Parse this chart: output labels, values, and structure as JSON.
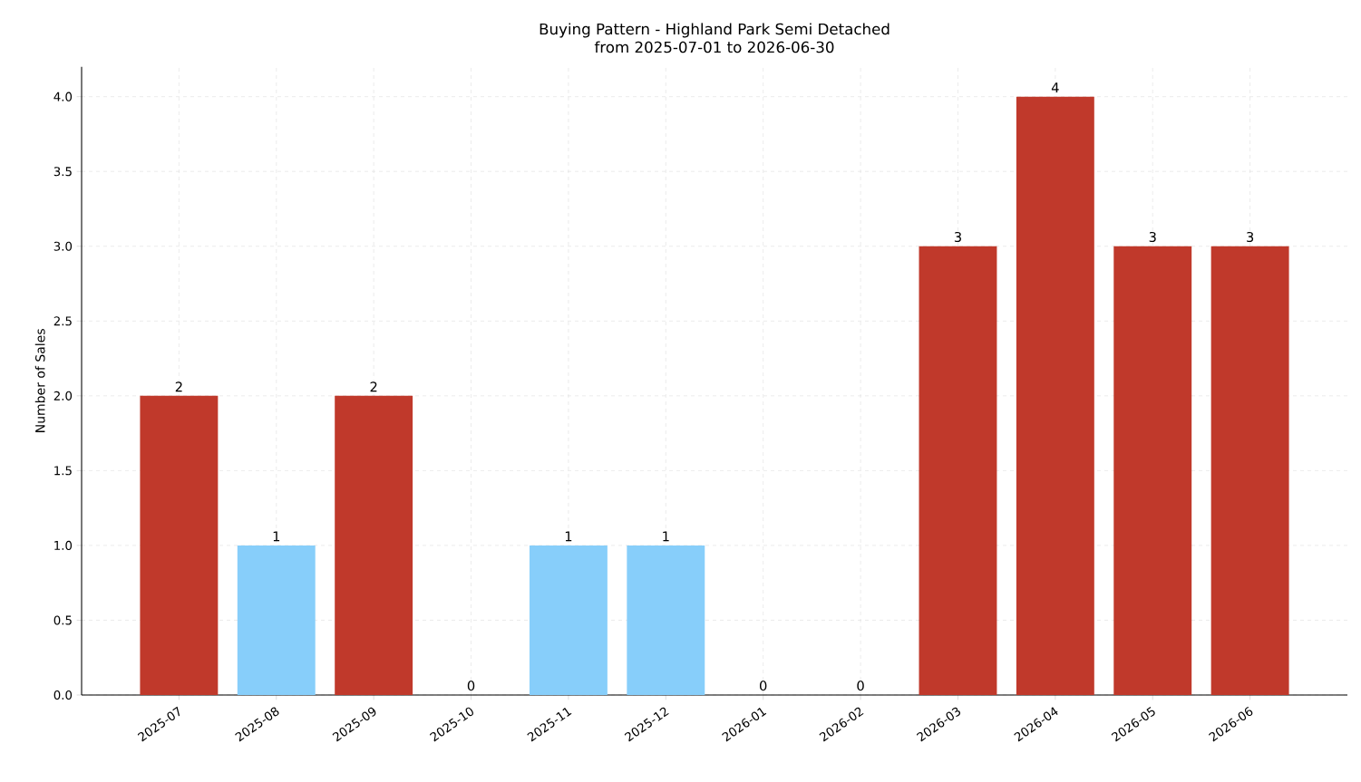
{
  "chart_data": {
    "type": "bar",
    "title": "Buying Pattern - Highland Park Semi Detached\nfrom 2025-07-01 to 2026-06-30",
    "ylabel": "Number of Sales",
    "categories": [
      "2025-07",
      "2025-08",
      "2025-09",
      "2025-10",
      "2025-11",
      "2025-12",
      "2026-01",
      "2026-02",
      "2026-03",
      "2026-04",
      "2026-05",
      "2026-06"
    ],
    "values": [
      2,
      1,
      2,
      0,
      1,
      1,
      0,
      0,
      3,
      4,
      3,
      3
    ],
    "colors": [
      "#c0392b",
      "#87cefa",
      "#c0392b",
      "#87cefa",
      "#87cefa",
      "#87cefa",
      "#87cefa",
      "#87cefa",
      "#c0392b",
      "#c0392b",
      "#c0392b",
      "#c0392b"
    ],
    "ylim": [
      0,
      4.2
    ],
    "yticks": [
      {
        "value": 0,
        "label": "0.0"
      },
      {
        "value": 0.5,
        "label": "0.5"
      },
      {
        "value": 1,
        "label": "1.0"
      },
      {
        "value": 1.5,
        "label": "1.5"
      },
      {
        "value": 2,
        "label": "2.0"
      },
      {
        "value": 2.5,
        "label": "2.5"
      },
      {
        "value": 3,
        "label": "3.0"
      },
      {
        "value": 3.5,
        "label": "3.5"
      },
      {
        "value": 4,
        "label": "4.0"
      }
    ],
    "grid": true,
    "data_labels": true
  }
}
